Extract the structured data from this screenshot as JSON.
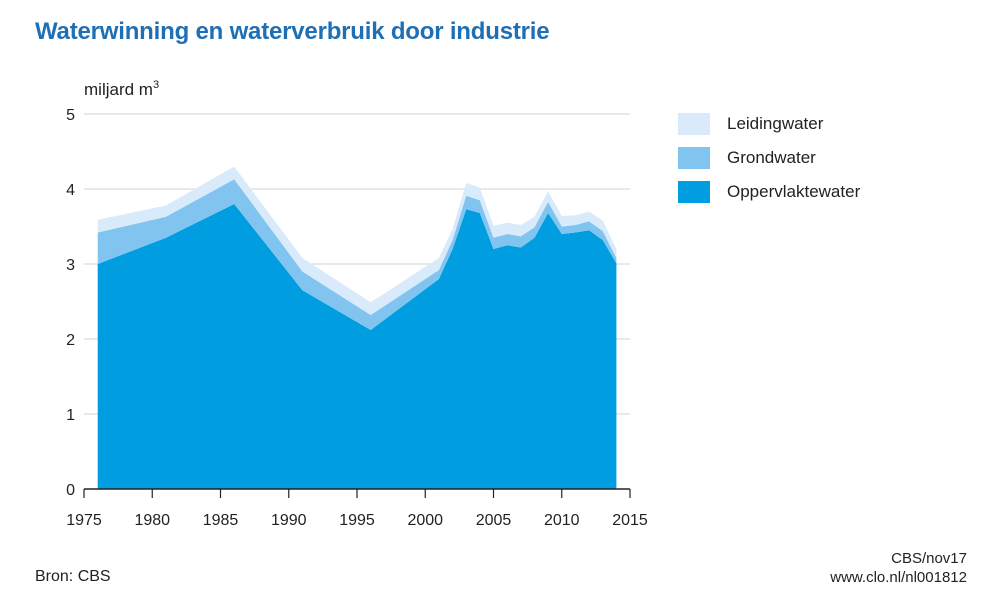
{
  "chart_data": {
    "type": "area",
    "stacked": true,
    "title": "Waterwinning en waterverbruik door industrie",
    "ylabel_text": "miljard m",
    "ylabel_superscript": "3",
    "ylim": [
      0,
      5
    ],
    "xlim": [
      1975,
      2015
    ],
    "yticks": [
      "0",
      "1",
      "2",
      "3",
      "4",
      "5"
    ],
    "xticks": [
      "1975",
      "1980",
      "1985",
      "1990",
      "1995",
      "2000",
      "2005",
      "2010",
      "2015"
    ],
    "grid": true,
    "legend_position": "right",
    "x": [
      1976,
      1981,
      1986,
      1991,
      1996,
      2001,
      2002,
      2003,
      2004,
      2005,
      2006,
      2007,
      2008,
      2009,
      2010,
      2011,
      2012,
      2013,
      2014
    ],
    "series": [
      {
        "name": "Oppervlaktewater",
        "color": "#009ee0",
        "values": [
          3.0,
          3.35,
          3.8,
          2.65,
          2.12,
          2.8,
          3.2,
          3.73,
          3.68,
          3.2,
          3.25,
          3.22,
          3.35,
          3.68,
          3.4,
          3.42,
          3.45,
          3.32,
          3.01
        ]
      },
      {
        "name": "Grondwater",
        "color": "#82c4f0",
        "values": [
          0.42,
          0.28,
          0.33,
          0.25,
          0.2,
          0.12,
          0.12,
          0.18,
          0.17,
          0.15,
          0.15,
          0.15,
          0.14,
          0.15,
          0.1,
          0.1,
          0.12,
          0.12,
          0.07
        ]
      },
      {
        "name": "Leidingwater",
        "color": "#d9ebfb",
        "values": [
          0.17,
          0.15,
          0.17,
          0.18,
          0.17,
          0.16,
          0.15,
          0.17,
          0.17,
          0.16,
          0.15,
          0.15,
          0.14,
          0.14,
          0.14,
          0.13,
          0.13,
          0.14,
          0.12
        ]
      }
    ],
    "legend_order": [
      "Leidingwater",
      "Grondwater",
      "Oppervlaktewater"
    ]
  },
  "footer": {
    "source": "Bron: CBS",
    "code": "CBS/nov17",
    "url": "www.clo.nl/nl001812"
  },
  "colors": {
    "title": "#1f6fb5",
    "grid": "#cfd3d6",
    "axis": "#222222"
  }
}
